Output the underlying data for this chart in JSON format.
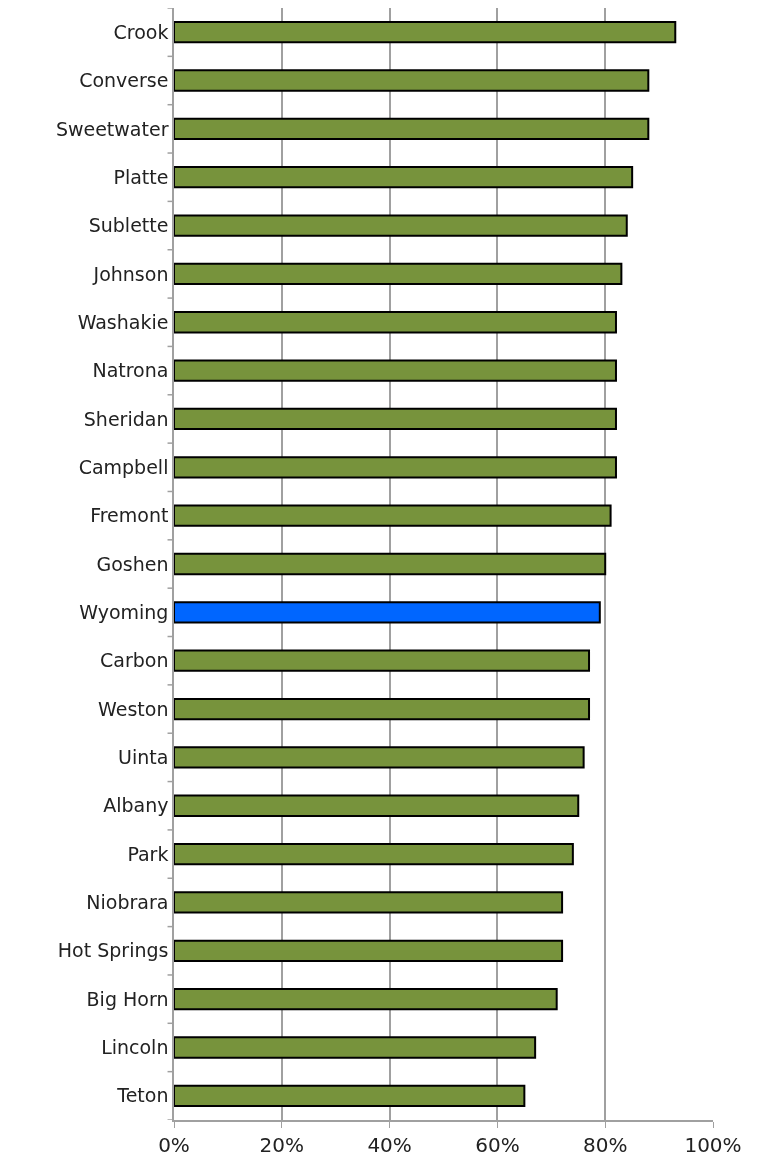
{
  "chart_data": {
    "type": "bar",
    "orientation": "horizontal",
    "categories": [
      "Crook",
      "Converse",
      "Sweetwater",
      "Platte",
      "Sublette",
      "Johnson",
      "Washakie",
      "Natrona",
      "Sheridan",
      "Campbell",
      "Fremont",
      "Goshen",
      "Wyoming",
      "Carbon",
      "Weston",
      "Uinta",
      "Albany",
      "Park",
      "Niobrara",
      "Hot Springs",
      "Big Horn",
      "Lincoln",
      "Teton"
    ],
    "values": [
      93,
      88,
      88,
      85,
      84,
      83,
      82,
      82,
      82,
      82,
      81,
      80,
      79,
      77,
      77,
      76,
      75,
      74,
      72,
      72,
      71,
      67,
      65
    ],
    "colors": [
      "#77933c",
      "#77933c",
      "#77933c",
      "#77933c",
      "#77933c",
      "#77933c",
      "#77933c",
      "#77933c",
      "#77933c",
      "#77933c",
      "#77933c",
      "#77933c",
      "#0066ff",
      "#77933c",
      "#77933c",
      "#77933c",
      "#77933c",
      "#77933c",
      "#77933c",
      "#77933c",
      "#77933c",
      "#77933c",
      "#77933c"
    ],
    "xlim": [
      0,
      100
    ],
    "xticks": [
      {
        "value": 0,
        "label": "0%"
      },
      {
        "value": 20,
        "label": "20%"
      },
      {
        "value": 40,
        "label": "40%"
      },
      {
        "value": 60,
        "label": "60%"
      },
      {
        "value": 80,
        "label": "80%"
      },
      {
        "value": 100,
        "label": "100%"
      }
    ],
    "grid": "x",
    "legend": false
  }
}
